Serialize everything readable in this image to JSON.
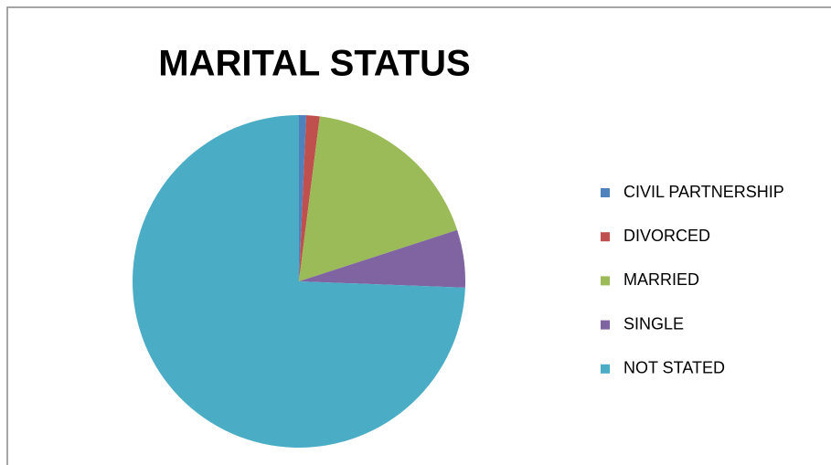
{
  "chart_data": {
    "type": "pie",
    "title": "MARITAL STATUS",
    "categories": [
      "CIVIL PARTNERSHIP",
      "DIVORCED",
      "MARRIED",
      "SINGLE",
      "NOT STATED"
    ],
    "values": [
      0.7,
      1.3,
      18.0,
      5.6,
      74.4
    ],
    "colors": [
      "#4f81bd",
      "#c0504d",
      "#9bbb59",
      "#8064a2",
      "#4bacc6"
    ],
    "legend": "right"
  }
}
